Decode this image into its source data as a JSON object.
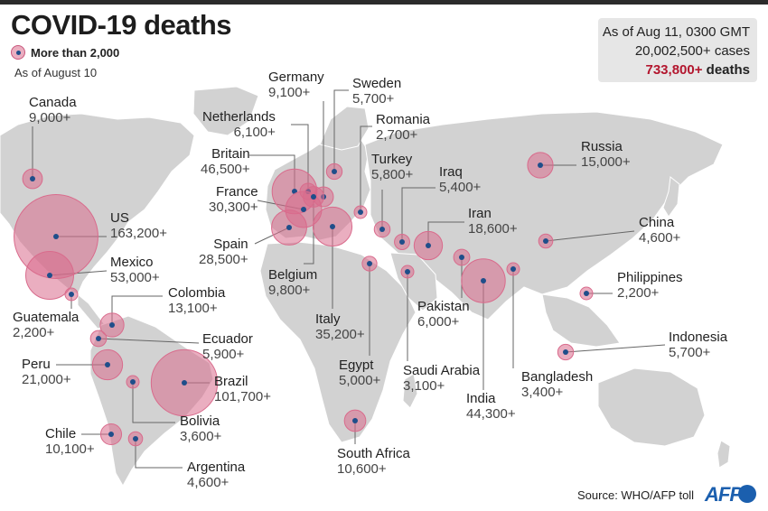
{
  "title": "COVID-19 deaths",
  "legend": {
    "label": "More than 2,000"
  },
  "as_of": "As of August 10",
  "summary": {
    "date": "As of Aug 11, 0300 GMT",
    "cases": "20,002,500+ cases",
    "deaths_number": "733,800+",
    "deaths_word": " deaths"
  },
  "source": "Source: WHO/AFP toll",
  "logo": "AFP",
  "colors": {
    "land": "#d2d2d2",
    "bubble": "#d96b8c",
    "dot": "#1f4e8a",
    "deaths": "#b3162e"
  },
  "countries": [
    {
      "name": "Canada",
      "value": "9,000+",
      "deaths": 9000
    },
    {
      "name": "US",
      "value": "163,200+",
      "deaths": 163200
    },
    {
      "name": "Mexico",
      "value": "53,000+",
      "deaths": 53000
    },
    {
      "name": "Guatemala",
      "value": "2,200+",
      "deaths": 2200
    },
    {
      "name": "Colombia",
      "value": "13,100+",
      "deaths": 13100
    },
    {
      "name": "Ecuador",
      "value": "5,900+",
      "deaths": 5900
    },
    {
      "name": "Peru",
      "value": "21,000+",
      "deaths": 21000
    },
    {
      "name": "Brazil",
      "value": "101,700+",
      "deaths": 101700
    },
    {
      "name": "Bolivia",
      "value": "3,600+",
      "deaths": 3600
    },
    {
      "name": "Chile",
      "value": "10,100+",
      "deaths": 10100
    },
    {
      "name": "Argentina",
      "value": "4,600+",
      "deaths": 4600
    },
    {
      "name": "Britain",
      "value": "46,500+",
      "deaths": 46500
    },
    {
      "name": "Netherlands",
      "value": "6,100+",
      "deaths": 6100
    },
    {
      "name": "Germany",
      "value": "9,100+",
      "deaths": 9100
    },
    {
      "name": "Sweden",
      "value": "5,700+",
      "deaths": 5700
    },
    {
      "name": "Romania",
      "value": "2,700+",
      "deaths": 2700
    },
    {
      "name": "France",
      "value": "30,300+",
      "deaths": 30300
    },
    {
      "name": "Spain",
      "value": "28,500+",
      "deaths": 28500
    },
    {
      "name": "Belgium",
      "value": "9,800+",
      "deaths": 9800
    },
    {
      "name": "Italy",
      "value": "35,200+",
      "deaths": 35200
    },
    {
      "name": "Turkey",
      "value": "5,800+",
      "deaths": 5800
    },
    {
      "name": "Iraq",
      "value": "5,400+",
      "deaths": 5400
    },
    {
      "name": "Iran",
      "value": "18,600+",
      "deaths": 18600
    },
    {
      "name": "Egypt",
      "value": "5,000+",
      "deaths": 5000
    },
    {
      "name": "Saudi Arabia",
      "value": "3,100+",
      "deaths": 3100
    },
    {
      "name": "South Africa",
      "value": "10,600+",
      "deaths": 10600
    },
    {
      "name": "Russia",
      "value": "15,000+",
      "deaths": 15000
    },
    {
      "name": "China",
      "value": "4,600+",
      "deaths": 4600
    },
    {
      "name": "Pakistan",
      "value": "6,000+",
      "deaths": 6000
    },
    {
      "name": "India",
      "value": "44,300+",
      "deaths": 44300
    },
    {
      "name": "Bangladesh",
      "value": "3,400+",
      "deaths": 3400
    },
    {
      "name": "Philippines",
      "value": "2,200+",
      "deaths": 2200
    },
    {
      "name": "Indonesia",
      "value": "5,700+",
      "deaths": 5700
    }
  ]
}
